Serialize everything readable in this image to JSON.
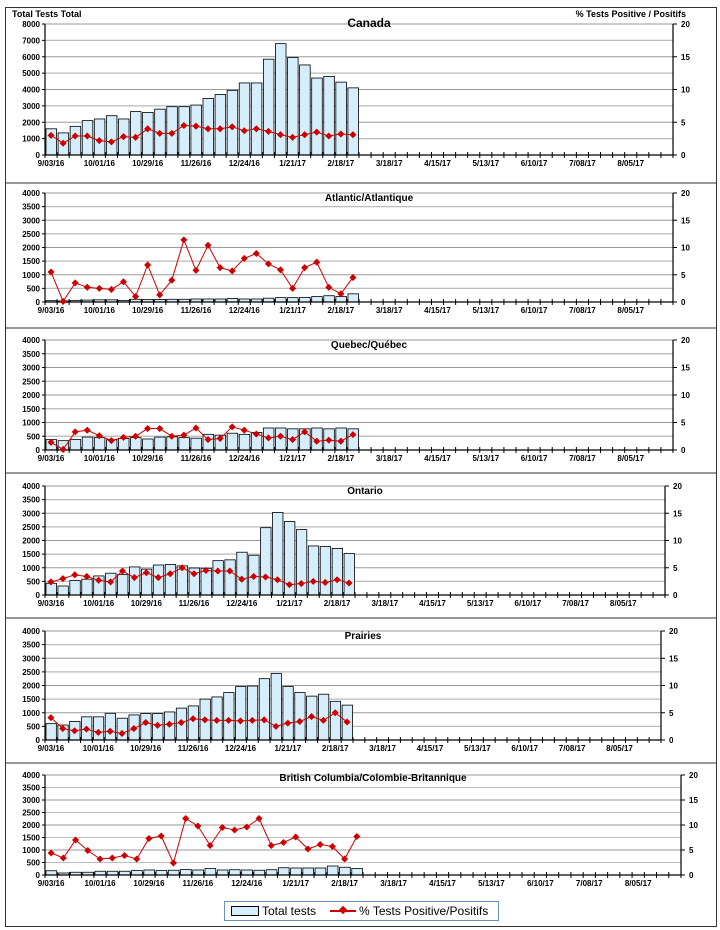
{
  "header": {
    "left_axis_title": "Total Tests Total",
    "right_axis_title": "% Tests Positive / Positifs"
  },
  "legend": {
    "bars_label": "Total tests",
    "line_label": "% Tests Positive/Positifs"
  },
  "colors": {
    "bar_fill": "#d6eefb",
    "bar_stroke": "#000000",
    "line": "#cc0000",
    "grid": "#9a9a9a"
  },
  "chart_data": [
    {
      "type": "bar+line",
      "title": "Canada",
      "ylabel": "Total Tests Total",
      "y2label": "% Tests Positive / Positifs",
      "ylim": [
        0,
        8000
      ],
      "yticks": [
        "0",
        "1000",
        "2000",
        "3000",
        "4000",
        "5000",
        "6000",
        "7000",
        "8000"
      ],
      "y2lim": [
        0,
        20
      ],
      "y2ticks": [
        "0",
        "5",
        "10",
        "15",
        "20"
      ],
      "xticks": [
        "9/03/16",
        "10/01/16",
        "10/29/16",
        "11/26/16",
        "12/24/16",
        "1/21/17",
        "2/18/17",
        "3/18/17",
        "4/15/17",
        "5/13/17",
        "6/10/17",
        "7/08/17",
        "8/05/17"
      ],
      "weeks_total": 52,
      "bars": [
        1600,
        1350,
        1750,
        2100,
        2200,
        2400,
        2200,
        2650,
        2600,
        2800,
        2950,
        2950,
        3050,
        3450,
        3700,
        3950,
        4400,
        4400,
        5850,
        6800,
        5950,
        5500,
        4700,
        4800,
        4450,
        4100
      ],
      "line": [
        3.0,
        1.8,
        2.9,
        2.9,
        2.2,
        2.0,
        2.8,
        2.7,
        4.0,
        3.3,
        3.3,
        4.5,
        4.4,
        4.0,
        4.0,
        4.3,
        3.7,
        4.0,
        3.6,
        3.1,
        2.7,
        3.1,
        3.5,
        2.9,
        3.2,
        3.1
      ]
    },
    {
      "type": "bar+line",
      "title": "Atlantic/Atlantique",
      "ylim": [
        0,
        4000
      ],
      "yticks": [
        "0",
        "500",
        "1000",
        "1500",
        "2000",
        "2500",
        "3000",
        "3500",
        "4000"
      ],
      "y2lim": [
        0,
        20
      ],
      "y2ticks": [
        "0",
        "5",
        "10",
        "15",
        "20"
      ],
      "xticks": [
        "9/03/16",
        "10/01/16",
        "10/29/16",
        "11/26/16",
        "12/24/16",
        "1/21/17",
        "2/18/17",
        "3/18/17",
        "4/15/17",
        "5/13/17",
        "6/10/17",
        "7/08/17",
        "8/05/17"
      ],
      "weeks_total": 52,
      "bars": [
        50,
        40,
        60,
        70,
        80,
        80,
        60,
        100,
        90,
        90,
        100,
        100,
        110,
        110,
        110,
        130,
        110,
        110,
        140,
        160,
        160,
        170,
        200,
        230,
        200,
        300
      ],
      "line": [
        5.5,
        0.1,
        3.5,
        2.7,
        2.5,
        2.3,
        3.7,
        1.0,
        6.8,
        1.3,
        4.0,
        11.4,
        5.8,
        10.4,
        6.3,
        5.7,
        8.0,
        8.9,
        7.0,
        5.9,
        2.5,
        6.3,
        7.3,
        2.7,
        1.5,
        4.5
      ]
    },
    {
      "type": "bar+line",
      "title": "Quebec/Québec",
      "ylim": [
        0,
        4000
      ],
      "yticks": [
        "0",
        "500",
        "1000",
        "1500",
        "2000",
        "2500",
        "3000",
        "3500",
        "4000"
      ],
      "y2lim": [
        0,
        20
      ],
      "y2ticks": [
        "0",
        "5",
        "10",
        "15",
        "20"
      ],
      "xticks": [
        "9/03/16",
        "10/01/16",
        "10/29/16",
        "11/26/16",
        "12/24/16",
        "1/21/17",
        "2/18/17",
        "3/18/17",
        "4/15/17",
        "5/13/17",
        "6/10/17",
        "7/08/17",
        "8/05/17"
      ],
      "weeks_total": 52,
      "bars": [
        380,
        340,
        380,
        470,
        450,
        370,
        420,
        450,
        400,
        470,
        480,
        450,
        430,
        570,
        540,
        610,
        570,
        640,
        800,
        800,
        770,
        770,
        800,
        770,
        800,
        770
      ],
      "line": [
        1.4,
        0.1,
        3.3,
        3.6,
        2.6,
        1.7,
        2.3,
        2.5,
        3.9,
        3.9,
        2.5,
        2.7,
        4.0,
        1.9,
        2.1,
        4.2,
        3.6,
        2.9,
        2.2,
        2.5,
        1.9,
        3.3,
        1.6,
        1.8,
        1.6,
        2.8
      ]
    },
    {
      "type": "bar+line",
      "title": "Ontario",
      "ylim": [
        0,
        4000
      ],
      "yticks": [
        "0",
        "500",
        "1000",
        "1500",
        "2000",
        "2500",
        "3000",
        "3500",
        "4000"
      ],
      "y2lim": [
        0,
        20
      ],
      "y2ticks": [
        "0",
        "5",
        "10",
        "15",
        "20"
      ],
      "xticks": [
        "9/03/16",
        "10/01/16",
        "10/29/16",
        "11/26/16",
        "12/24/16",
        "1/21/17",
        "2/18/17",
        "3/18/17",
        "4/15/17",
        "5/13/17",
        "6/10/17",
        "7/08/17",
        "8/05/17"
      ],
      "weeks_total": 52,
      "bars": [
        430,
        330,
        530,
        580,
        700,
        800,
        750,
        1030,
        950,
        1100,
        1120,
        1070,
        990,
        980,
        1260,
        1290,
        1570,
        1460,
        2470,
        3030,
        2700,
        2400,
        1800,
        1780,
        1710,
        1520
      ],
      "line": [
        2.4,
        3.0,
        3.7,
        3.4,
        2.7,
        2.4,
        4.4,
        3.2,
        4.1,
        3.2,
        3.9,
        5.0,
        3.9,
        4.5,
        4.4,
        4.4,
        2.9,
        3.4,
        3.3,
        2.8,
        1.9,
        2.1,
        2.5,
        2.3,
        2.8,
        2.2
      ]
    },
    {
      "type": "bar+line",
      "title": "Prairies",
      "ylim": [
        0,
        4000
      ],
      "yticks": [
        "0",
        "500",
        "1000",
        "1500",
        "2000",
        "2500",
        "3000",
        "3500",
        "4000"
      ],
      "y2lim": [
        0,
        20
      ],
      "y2ticks": [
        "0",
        "5",
        "10",
        "15",
        "20"
      ],
      "xticks": [
        "9/03/16",
        "10/01/16",
        "10/29/16",
        "11/26/16",
        "12/24/16",
        "1/21/17",
        "2/18/17",
        "3/18/17",
        "4/15/17",
        "5/13/17",
        "6/10/17",
        "7/08/17",
        "8/05/17"
      ],
      "weeks_total": 52,
      "bars": [
        600,
        550,
        680,
        850,
        850,
        980,
        800,
        920,
        970,
        970,
        1030,
        1170,
        1250,
        1500,
        1580,
        1740,
        1960,
        1980,
        2250,
        2440,
        1960,
        1740,
        1610,
        1680,
        1420,
        1280
      ],
      "line": [
        4.1,
        2.1,
        1.7,
        2.0,
        1.4,
        1.6,
        1.2,
        2.1,
        3.2,
        2.7,
        2.9,
        3.2,
        3.9,
        3.7,
        3.6,
        3.6,
        3.5,
        3.6,
        3.7,
        2.5,
        3.1,
        3.4,
        4.3,
        3.6,
        5.0,
        3.3
      ]
    },
    {
      "type": "bar+line",
      "title": "British Columbia/Colombie-Britannique",
      "ylim": [
        0,
        4000
      ],
      "yticks": [
        "0",
        "500",
        "1000",
        "1500",
        "2000",
        "2500",
        "3000",
        "3500",
        "4000"
      ],
      "y2lim": [
        0,
        20
      ],
      "y2ticks": [
        "0",
        "5",
        "10",
        "15",
        "20"
      ],
      "xticks": [
        "9/03/16",
        "10/01/16",
        "10/29/16",
        "11/26/16",
        "12/24/16",
        "1/21/17",
        "2/18/17",
        "3/18/17",
        "4/15/17",
        "5/13/17",
        "6/10/17",
        "7/08/17",
        "8/05/17"
      ],
      "weeks_total": 52,
      "bars": [
        170,
        80,
        110,
        110,
        150,
        150,
        150,
        180,
        200,
        180,
        190,
        220,
        200,
        260,
        200,
        210,
        200,
        190,
        210,
        290,
        280,
        280,
        280,
        360,
        310,
        260
      ],
      "line": [
        4.4,
        3.4,
        7.0,
        4.9,
        3.2,
        3.4,
        3.9,
        3.2,
        7.3,
        7.8,
        2.4,
        11.3,
        9.8,
        5.9,
        9.5,
        9.0,
        9.6,
        11.3,
        5.9,
        6.5,
        7.6,
        5.2,
        6.1,
        5.7,
        3.2,
        7.7
      ]
    }
  ]
}
